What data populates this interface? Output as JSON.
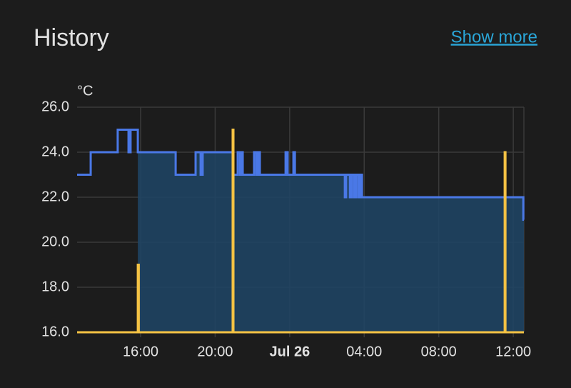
{
  "header": {
    "title": "History",
    "link": "Show more"
  },
  "chart_data": {
    "type": "step-line",
    "y_unit": "°C",
    "xlim": [
      12.59,
      36.57
    ],
    "xticks": [
      {
        "value": 16,
        "label": "16:00"
      },
      {
        "value": 20,
        "label": "20:00"
      },
      {
        "value": 24,
        "label": "Jul 26"
      },
      {
        "value": 28,
        "label": "04:00"
      },
      {
        "value": 32,
        "label": "08:00"
      },
      {
        "value": 36,
        "label": "12:00"
      }
    ],
    "ylim": [
      16,
      26
    ],
    "yticks": [
      {
        "value": 16,
        "label": "16.0"
      },
      {
        "value": 18,
        "label": "18.0"
      },
      {
        "value": 20,
        "label": "20.0"
      },
      {
        "value": 22,
        "label": "22.0"
      },
      {
        "value": 24,
        "label": "24.0"
      },
      {
        "value": 26,
        "label": "26.0"
      }
    ],
    "grid": true,
    "series": [
      {
        "color": "#4a78e6",
        "fill_color": "#1f4566",
        "fill_start": 15.85,
        "x": [
          12.59,
          13.32,
          14.77,
          15.35,
          15.46,
          15.85,
          17.88,
          18.95,
          19.22,
          19.33,
          20.94,
          21.21,
          21.33,
          21.4,
          21.48,
          22.09,
          22.21,
          22.32,
          22.4,
          23.78,
          23.89,
          24.2,
          24.28,
          26.96,
          27.03,
          27.23,
          27.34,
          27.46,
          27.57,
          27.69,
          27.8,
          27.88,
          36.54,
          36.57
        ],
        "values": [
          23,
          24,
          25,
          24,
          25,
          24,
          23,
          24,
          23,
          24,
          23,
          24,
          23,
          24,
          23,
          24,
          23,
          24,
          23,
          24,
          23,
          24,
          23,
          22,
          23,
          22,
          23,
          22,
          23,
          22,
          23,
          22,
          21,
          21
        ]
      },
      {
        "color": "#f4c244",
        "x": [
          12.59,
          15.85,
          15.9,
          20.94,
          20.98,
          35.54,
          35.58,
          36.57
        ],
        "values": [
          16,
          19,
          16,
          25,
          16,
          24,
          16,
          16
        ]
      }
    ]
  }
}
